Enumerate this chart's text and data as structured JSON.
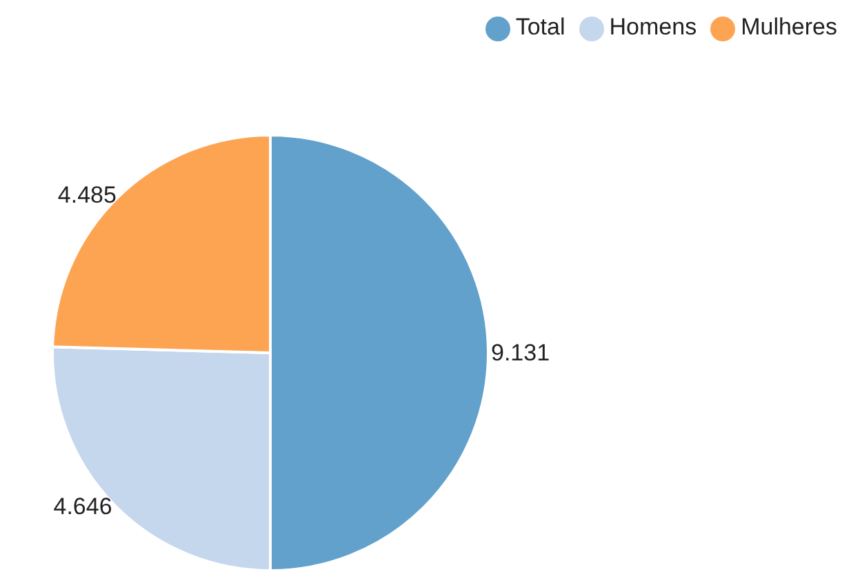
{
  "chart_data": {
    "type": "pie",
    "categories": [
      "Total",
      "Homens",
      "Mulheres"
    ],
    "values": [
      9.131,
      4.646,
      4.485
    ],
    "colors": [
      "#62a1cb",
      "#c5d7ed",
      "#fda453"
    ],
    "data_labels": true,
    "legend": "top right"
  }
}
